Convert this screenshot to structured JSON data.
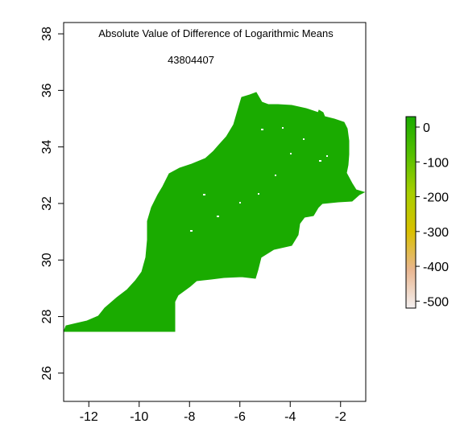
{
  "title": "Absolute Value of Difference of Logarithmic Means",
  "subtitle": "43804407",
  "map": {
    "region_color": "#1aab00",
    "x_ticks": [
      -12,
      -10,
      -8,
      -6,
      -4,
      -2
    ],
    "y_ticks": [
      26,
      28,
      30,
      32,
      34,
      36,
      38
    ],
    "xlim": [
      -13,
      -1
    ],
    "ylim": [
      25,
      38.4
    ]
  },
  "legend": {
    "ticks": [
      0,
      -100,
      -200,
      -300,
      -400,
      -500
    ],
    "range": [
      -520,
      30
    ],
    "colors": [
      "#f4f0f0",
      "#e9b690",
      "#d9c000",
      "#a8cf00",
      "#56c000",
      "#1aab00"
    ]
  }
}
